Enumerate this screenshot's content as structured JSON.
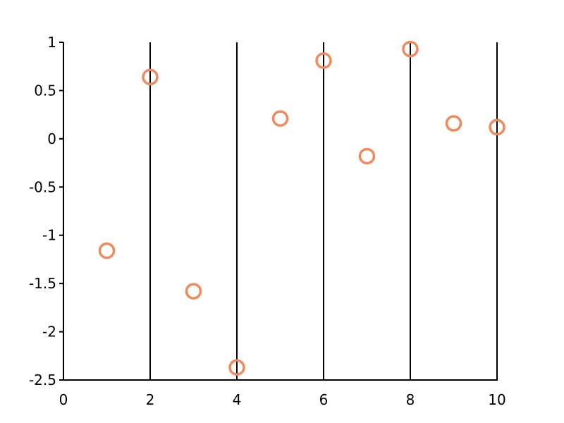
{
  "chart_data": {
    "type": "scatter",
    "title": "",
    "xlabel": "",
    "ylabel": "",
    "xlim": [
      0,
      10
    ],
    "ylim": [
      -2.5,
      1
    ],
    "x_ticks": [
      "0",
      "2",
      "4",
      "6",
      "8",
      "10"
    ],
    "y_ticks": [
      "1",
      "0.5",
      "0",
      "-0.5",
      "-1",
      "-1.5",
      "-2",
      "-2.5"
    ],
    "vertical_gridlines_at": [
      2,
      4,
      6,
      8,
      10
    ],
    "grid": "vertical",
    "legend": "none",
    "series": [
      {
        "marker": "hollow-circle",
        "color": "#f08a5d",
        "points": [
          {
            "x": 1,
            "y": -1.16
          },
          {
            "x": 2,
            "y": 0.64
          },
          {
            "x": 3,
            "y": -1.58
          },
          {
            "x": 4,
            "y": -2.37
          },
          {
            "x": 5,
            "y": 0.21
          },
          {
            "x": 6,
            "y": 0.81
          },
          {
            "x": 7,
            "y": -0.18
          },
          {
            "x": 8,
            "y": 0.93
          },
          {
            "x": 9,
            "y": 0.16
          },
          {
            "x": 10,
            "y": 0.12
          }
        ]
      }
    ]
  }
}
